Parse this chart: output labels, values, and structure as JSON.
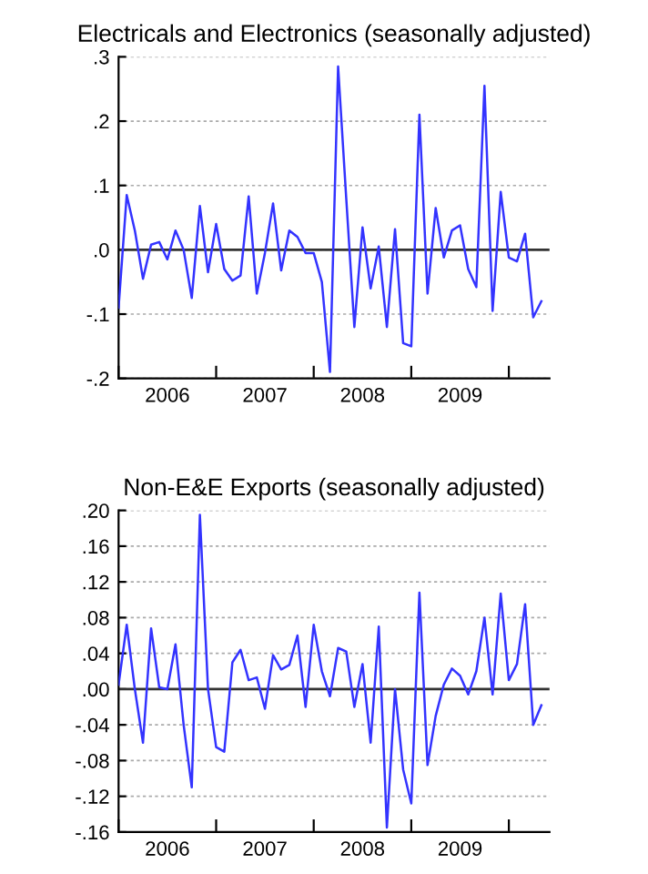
{
  "chart_data": [
    {
      "type": "line",
      "title": "Electricals and Electronics (seasonally adjusted)",
      "x": [
        "2006-01",
        "2006-02",
        "2006-03",
        "2006-04",
        "2006-05",
        "2006-06",
        "2006-07",
        "2006-08",
        "2006-09",
        "2006-10",
        "2006-11",
        "2006-12",
        "2007-01",
        "2007-02",
        "2007-03",
        "2007-04",
        "2007-05",
        "2007-06",
        "2007-07",
        "2007-08",
        "2007-09",
        "2007-10",
        "2007-11",
        "2007-12",
        "2008-01",
        "2008-02",
        "2008-03",
        "2008-04",
        "2008-05",
        "2008-06",
        "2008-07",
        "2008-08",
        "2008-09",
        "2008-10",
        "2008-11",
        "2008-12",
        "2009-01",
        "2009-02",
        "2009-03",
        "2009-04",
        "2009-05",
        "2009-06",
        "2009-07",
        "2009-08",
        "2009-09",
        "2009-10",
        "2009-11",
        "2009-12",
        "2010-01",
        "2010-02",
        "2010-03",
        "2010-04",
        "2010-05"
      ],
      "series": [
        {
          "color": "#3333ff",
          "values": [
            -0.09,
            0.085,
            0.03,
            -0.045,
            0.008,
            0.012,
            -0.015,
            0.03,
            0.0,
            -0.075,
            0.068,
            -0.035,
            0.04,
            -0.03,
            -0.048,
            -0.04,
            0.083,
            -0.068,
            -0.005,
            0.072,
            -0.032,
            0.03,
            0.02,
            -0.005,
            -0.005,
            -0.05,
            -0.19,
            0.285,
            0.08,
            -0.12,
            0.035,
            -0.06,
            0.005,
            -0.12,
            0.032,
            -0.145,
            -0.15,
            0.21,
            -0.068,
            0.065,
            -0.012,
            0.03,
            0.038,
            -0.03,
            -0.058,
            0.255,
            -0.095,
            0.09,
            -0.012,
            -0.018,
            0.025,
            -0.105,
            -0.08
          ]
        }
      ],
      "xlim": [
        "2006-01",
        "2010-06"
      ],
      "xticks": [
        {
          "value": "2006-01",
          "label": null
        },
        {
          "value": "2006-07",
          "label": "2006"
        },
        {
          "value": "2007-01",
          "label": null
        },
        {
          "value": "2007-07",
          "label": "2007"
        },
        {
          "value": "2008-01",
          "label": null
        },
        {
          "value": "2008-07",
          "label": "2008"
        },
        {
          "value": "2009-01",
          "label": null
        },
        {
          "value": "2009-07",
          "label": "2009"
        },
        {
          "value": "2010-01",
          "label": null
        }
      ],
      "ylim": [
        -0.2,
        0.3
      ],
      "yticks": [
        {
          "value": -0.2,
          "label": "-.2"
        },
        {
          "value": -0.1,
          "label": "-.1"
        },
        {
          "value": 0.0,
          "label": ".0"
        },
        {
          "value": 0.1,
          "label": ".1"
        },
        {
          "value": 0.2,
          "label": ".2"
        },
        {
          "value": 0.3,
          "label": ".3"
        }
      ],
      "grid": "y",
      "ref_lines": [
        {
          "axis": "y",
          "value": 0,
          "color": "#333333"
        }
      ]
    },
    {
      "type": "line",
      "title": "Non-E&E Exports (seasonally adjusted)",
      "x": [
        "2006-01",
        "2006-02",
        "2006-03",
        "2006-04",
        "2006-05",
        "2006-06",
        "2006-07",
        "2006-08",
        "2006-09",
        "2006-10",
        "2006-11",
        "2006-12",
        "2007-01",
        "2007-02",
        "2007-03",
        "2007-04",
        "2007-05",
        "2007-06",
        "2007-07",
        "2007-08",
        "2007-09",
        "2007-10",
        "2007-11",
        "2007-12",
        "2008-01",
        "2008-02",
        "2008-03",
        "2008-04",
        "2008-05",
        "2008-06",
        "2008-07",
        "2008-08",
        "2008-09",
        "2008-10",
        "2008-11",
        "2008-12",
        "2009-01",
        "2009-02",
        "2009-03",
        "2009-04",
        "2009-05",
        "2009-06",
        "2009-07",
        "2009-08",
        "2009-09",
        "2009-10",
        "2009-11",
        "2009-12",
        "2010-01",
        "2010-02",
        "2010-03",
        "2010-04",
        "2010-05"
      ],
      "series": [
        {
          "color": "#3333ff",
          "values": [
            0.005,
            0.072,
            0.0,
            -0.06,
            0.068,
            0.002,
            0.0,
            0.05,
            -0.04,
            -0.11,
            0.195,
            0.0,
            -0.065,
            -0.07,
            0.03,
            0.044,
            0.01,
            0.013,
            -0.022,
            0.038,
            0.022,
            0.027,
            0.06,
            -0.02,
            0.072,
            0.02,
            -0.008,
            0.046,
            0.042,
            -0.02,
            0.028,
            -0.06,
            0.07,
            -0.155,
            0.0,
            -0.09,
            -0.128,
            0.108,
            -0.085,
            -0.03,
            0.005,
            0.023,
            0.015,
            -0.006,
            0.02,
            0.08,
            -0.006,
            0.107,
            0.01,
            0.028,
            0.095,
            -0.04,
            -0.018
          ]
        }
      ],
      "xlim": [
        "2006-01",
        "2010-06"
      ],
      "xticks": [
        {
          "value": "2006-01",
          "label": null
        },
        {
          "value": "2006-07",
          "label": "2006"
        },
        {
          "value": "2007-01",
          "label": null
        },
        {
          "value": "2007-07",
          "label": "2007"
        },
        {
          "value": "2008-01",
          "label": null
        },
        {
          "value": "2008-07",
          "label": "2008"
        },
        {
          "value": "2009-01",
          "label": null
        },
        {
          "value": "2009-07",
          "label": "2009"
        },
        {
          "value": "2010-01",
          "label": null
        }
      ],
      "ylim": [
        -0.16,
        0.2
      ],
      "yticks": [
        {
          "value": -0.16,
          "label": "-.16"
        },
        {
          "value": -0.12,
          "label": "-.12"
        },
        {
          "value": -0.08,
          "label": "-.08"
        },
        {
          "value": -0.04,
          "label": "-.04"
        },
        {
          "value": 0.0,
          "label": ".00"
        },
        {
          "value": 0.04,
          "label": ".04"
        },
        {
          "value": 0.08,
          "label": ".08"
        },
        {
          "value": 0.12,
          "label": ".12"
        },
        {
          "value": 0.16,
          "label": ".16"
        },
        {
          "value": 0.2,
          "label": ".20"
        }
      ],
      "grid": "y",
      "ref_lines": [
        {
          "axis": "y",
          "value": 0,
          "color": "#333333"
        }
      ]
    }
  ]
}
